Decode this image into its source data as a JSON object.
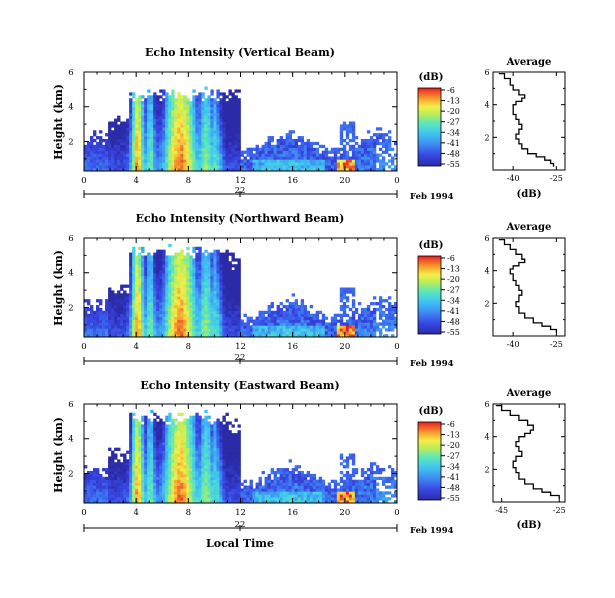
{
  "date_label": "Feb 1994",
  "xlabel": "Local Time",
  "colorbar": {
    "unit_label": "(dB)",
    "ticks": [
      "-6",
      "-13",
      "-20",
      "-27",
      "-34",
      "-41",
      "-48",
      "-55"
    ]
  },
  "chart_data": [
    {
      "type": "heatmap",
      "title": "Echo Intensity (Vertical Beam)",
      "xlabel": "",
      "ylabel": "Height (km)",
      "x_ticks": [
        "0",
        "4",
        "8",
        "12",
        "16",
        "20",
        "0"
      ],
      "y_ticks": [
        "2",
        "4",
        "6"
      ],
      "date_tick": "22",
      "xlim": [
        0,
        24
      ],
      "ylim": [
        0.3,
        6
      ],
      "zlim": [
        -55,
        -6
      ],
      "cloud_top_km": 4.9,
      "note": "echo columns strongest near 4-6 h and 8 h local time; weaker layer below 2 km after 12 h; bright spot near 20 h below 1 km"
    },
    {
      "type": "heatmap",
      "title": "Echo Intensity (Northward Beam)",
      "xlabel": "",
      "ylabel": "Height (km)",
      "x_ticks": [
        "0",
        "4",
        "8",
        "12",
        "16",
        "20",
        "0"
      ],
      "y_ticks": [
        "2",
        "4",
        "6"
      ],
      "date_tick": "22",
      "xlim": [
        0,
        24
      ],
      "ylim": [
        0.3,
        6
      ],
      "zlim": [
        -55,
        -6
      ],
      "cloud_top_km": 5.4
    },
    {
      "type": "heatmap",
      "title": "Echo Intensity (Eastward Beam)",
      "xlabel": "Local Time",
      "ylabel": "Height (km)",
      "x_ticks": [
        "0",
        "4",
        "8",
        "12",
        "16",
        "20",
        "0"
      ],
      "y_ticks": [
        "2",
        "4",
        "6"
      ],
      "date_tick": "22",
      "xlim": [
        0,
        24
      ],
      "ylim": [
        0.3,
        6
      ],
      "zlim": [
        -55,
        -6
      ],
      "cloud_top_km": 5.4
    },
    {
      "type": "line",
      "title": "Average",
      "xlabel": "(dB)",
      "x_ticks": [
        "-40",
        "-25"
      ],
      "y_ticks": [
        "2",
        "4",
        "6"
      ],
      "xlim": [
        -47,
        -22
      ],
      "ylim": [
        0,
        6
      ],
      "series": [
        {
          "x": [
            -26,
            -27,
            -29,
            -32,
            -35,
            -37,
            -38,
            -39,
            -38,
            -37,
            -38,
            -39,
            -40,
            -40,
            -39,
            -37,
            -36,
            -38,
            -40,
            -41,
            -43,
            -45
          ],
          "y": [
            0.2,
            0.4,
            0.6,
            0.8,
            1.0,
            1.3,
            1.6,
            1.9,
            2.2,
            2.5,
            2.8,
            3.1,
            3.4,
            3.7,
            4.0,
            4.2,
            4.4,
            4.6,
            4.9,
            5.2,
            5.6,
            5.9
          ]
        }
      ]
    },
    {
      "type": "line",
      "title": "Average",
      "xlabel": "",
      "x_ticks": [
        "-40",
        "-25"
      ],
      "y_ticks": [
        "2",
        "4",
        "6"
      ],
      "xlim": [
        -47,
        -22
      ],
      "ylim": [
        0,
        6
      ],
      "series": [
        {
          "x": [
            -25,
            -27,
            -30,
            -33,
            -36,
            -38,
            -39,
            -38,
            -37,
            -38,
            -39,
            -40,
            -41,
            -40,
            -38,
            -36,
            -37,
            -39,
            -41,
            -43,
            -45
          ],
          "y": [
            0.2,
            0.4,
            0.6,
            0.8,
            1.1,
            1.4,
            1.8,
            2.1,
            2.5,
            2.8,
            3.1,
            3.4,
            3.8,
            4.1,
            4.3,
            4.5,
            4.7,
            5.0,
            5.3,
            5.6,
            5.9
          ]
        }
      ]
    },
    {
      "type": "line",
      "title": "Average",
      "xlabel": "(dB)",
      "x_ticks": [
        "-45",
        "-25"
      ],
      "y_ticks": [
        "2",
        "4",
        "6"
      ],
      "xlim": [
        -48,
        -23
      ],
      "ylim": [
        0,
        6
      ],
      "series": [
        {
          "x": [
            -25,
            -28,
            -31,
            -34,
            -37,
            -39,
            -40,
            -41,
            -40,
            -38,
            -39,
            -40,
            -39,
            -37,
            -35,
            -34,
            -36,
            -39,
            -42,
            -45,
            -47
          ],
          "y": [
            0.2,
            0.4,
            0.6,
            0.8,
            1.1,
            1.4,
            1.8,
            2.1,
            2.5,
            2.8,
            3.1,
            3.4,
            3.7,
            4.0,
            4.2,
            4.4,
            4.7,
            5.0,
            5.3,
            5.6,
            5.9
          ]
        }
      ]
    }
  ]
}
